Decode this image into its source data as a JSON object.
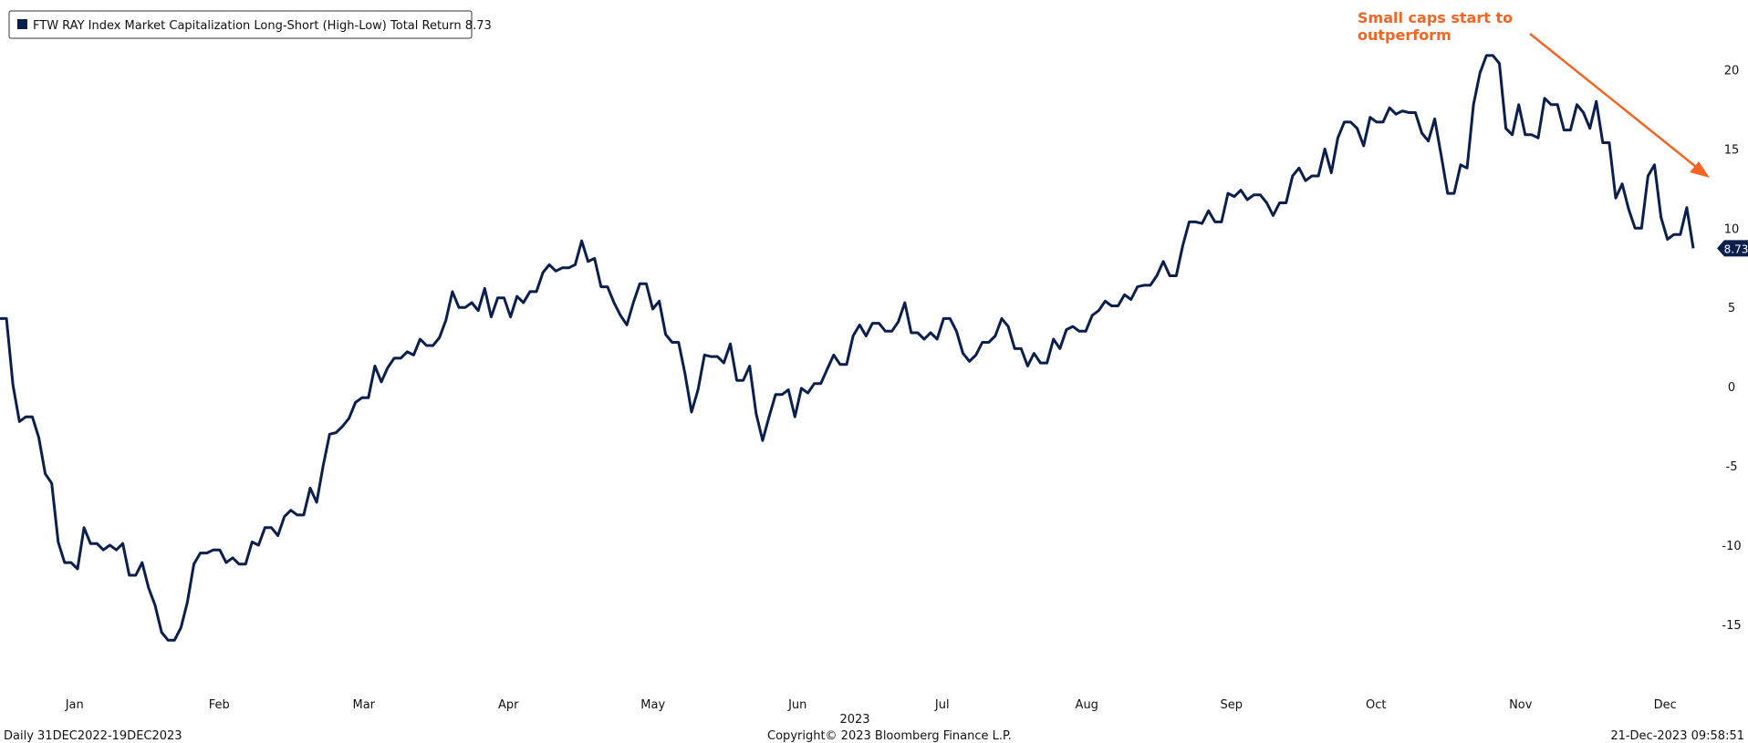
{
  "chart_data": {
    "type": "line",
    "legend_text": "FTW RAY Index Market Capitalization Long-Short (High-Low) Total Return",
    "annotation": [
      "Small caps start to",
      "outperform"
    ],
    "annotation_color": "#f26522",
    "x_labels": [
      "Jan",
      "Feb",
      "Mar",
      "Apr",
      "May",
      "Jun",
      "Jul",
      "Aug",
      "Sep",
      "Oct",
      "Nov",
      "Dec"
    ],
    "x_year": "2023",
    "footer_left": "Daily 31DEC2022-19DEC2023",
    "footer_center": "Copyright© 2023 Bloomberg Finance L.P.",
    "footer_right": "21-Dec-2023 09:58:51",
    "ylim": [
      -18,
      24
    ],
    "yticks": [
      -15,
      -10,
      -5,
      0,
      5,
      10,
      15,
      20
    ],
    "grid": false,
    "series": [
      {
        "name": "FTW RAY Index Market Capitalization Long-Short (High-Low) Total Return",
        "color": "#0b1f4d",
        "values": [
          4.3,
          4.3,
          0.1,
          -2.2,
          -1.9,
          -1.9,
          -3.2,
          -5.5,
          -6.1,
          -9.8,
          -11.1,
          -11.1,
          -11.5,
          -8.9,
          -9.9,
          -9.9,
          -10.3,
          -10.0,
          -10.3,
          -9.9,
          -11.9,
          -11.9,
          -11.1,
          -12.7,
          -13.8,
          -15.5,
          -16.0,
          -16.0,
          -15.2,
          -13.6,
          -11.2,
          -10.5,
          -10.5,
          -10.3,
          -10.3,
          -11.1,
          -10.8,
          -11.2,
          -11.2,
          -9.8,
          -10.0,
          -8.9,
          -8.9,
          -9.4,
          -8.2,
          -7.8,
          -8.1,
          -8.1,
          -6.4,
          -7.3,
          -5.0,
          -3.0,
          -2.9,
          -2.5,
          -2.0,
          -1.0,
          -0.7,
          -0.7,
          1.3,
          0.3,
          1.2,
          1.8,
          1.8,
          2.2,
          2.0,
          3.0,
          2.6,
          2.6,
          3.1,
          4.2,
          6.0,
          5.0,
          5.0,
          5.3,
          4.8,
          6.2,
          4.4,
          5.6,
          5.6,
          4.4,
          5.7,
          5.3,
          6.0,
          6.0,
          7.2,
          7.7,
          7.3,
          7.5,
          7.5,
          7.7,
          9.2,
          7.9,
          8.1,
          6.3,
          6.3,
          5.3,
          4.5,
          3.9,
          5.3,
          6.5,
          6.5,
          4.9,
          5.4,
          3.3,
          2.8,
          2.8,
          0.8,
          -1.6,
          -0.2,
          2.0,
          1.9,
          1.9,
          1.5,
          2.7,
          0.4,
          0.4,
          1.3,
          -1.7,
          -3.4,
          -1.9,
          -0.5,
          -0.5,
          -0.2,
          -1.9,
          -0.1,
          -0.4,
          0.2,
          0.2,
          1.1,
          2.0,
          1.4,
          1.4,
          3.2,
          3.9,
          3.2,
          4.0,
          4.0,
          3.5,
          3.5,
          4.1,
          5.3,
          3.4,
          3.4,
          3.0,
          3.4,
          3.0,
          4.3,
          4.3,
          3.5,
          2.1,
          1.6,
          2.0,
          2.8,
          2.8,
          3.2,
          4.3,
          3.8,
          2.4,
          2.4,
          1.3,
          2.1,
          1.5,
          1.5,
          3.0,
          2.4,
          3.6,
          3.8,
          3.5,
          3.5,
          4.5,
          4.8,
          5.4,
          5.1,
          5.1,
          5.8,
          5.5,
          6.3,
          6.4,
          6.4,
          7.0,
          7.9,
          7.0,
          7.0,
          8.9,
          10.4,
          10.4,
          10.3,
          11.1,
          10.4,
          10.4,
          12.2,
          12.0,
          12.4,
          11.8,
          12.1,
          12.1,
          11.6,
          10.8,
          11.6,
          11.6,
          13.3,
          13.8,
          13.0,
          13.3,
          13.3,
          15.0,
          13.5,
          15.7,
          16.7,
          16.7,
          16.3,
          15.2,
          17.0,
          16.7,
          16.7,
          17.6,
          17.2,
          17.4,
          17.3,
          17.3,
          16.0,
          15.5,
          16.9,
          14.6,
          12.2,
          12.2,
          14.0,
          13.8,
          17.8,
          19.8,
          20.9,
          20.9,
          20.4,
          16.3,
          15.9,
          17.8,
          15.9,
          15.9,
          15.7,
          18.2,
          17.8,
          17.8,
          16.2,
          16.2,
          17.8,
          17.3,
          16.3,
          18.0,
          15.4,
          15.4,
          11.9,
          12.8,
          11.2,
          10.0,
          10.0,
          13.3,
          14.0,
          10.7,
          9.3,
          9.6,
          9.6,
          11.3,
          8.73
        ]
      }
    ]
  }
}
